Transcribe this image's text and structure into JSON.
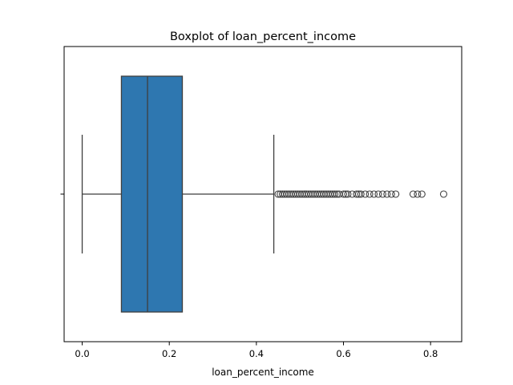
{
  "chart_data": {
    "type": "boxplot",
    "title": "Boxplot of loan_percent_income",
    "xlabel": "loan_percent_income",
    "ylabel": "",
    "xlim": [
      -0.0415,
      0.8715
    ],
    "xticks": [
      0.0,
      0.2,
      0.4,
      0.6,
      0.8
    ],
    "xtick_labels": [
      "0.0",
      "0.2",
      "0.4",
      "0.6",
      "0.8"
    ],
    "grid": false,
    "box_color": "#2e77b0",
    "edge_color": "#3f3f3f",
    "series": [
      {
        "min": 0.0,
        "q1": 0.09,
        "median": 0.15,
        "q3": 0.23,
        "whisker_low": 0.0,
        "whisker_high": 0.44,
        "outliers": [
          0.45,
          0.455,
          0.46,
          0.465,
          0.47,
          0.475,
          0.48,
          0.485,
          0.49,
          0.495,
          0.5,
          0.505,
          0.51,
          0.515,
          0.52,
          0.525,
          0.53,
          0.535,
          0.54,
          0.545,
          0.55,
          0.555,
          0.56,
          0.565,
          0.57,
          0.575,
          0.58,
          0.585,
          0.59,
          0.6,
          0.605,
          0.61,
          0.62,
          0.63,
          0.635,
          0.64,
          0.65,
          0.66,
          0.67,
          0.68,
          0.69,
          0.7,
          0.71,
          0.72,
          0.76,
          0.77,
          0.78,
          0.83
        ]
      }
    ]
  }
}
